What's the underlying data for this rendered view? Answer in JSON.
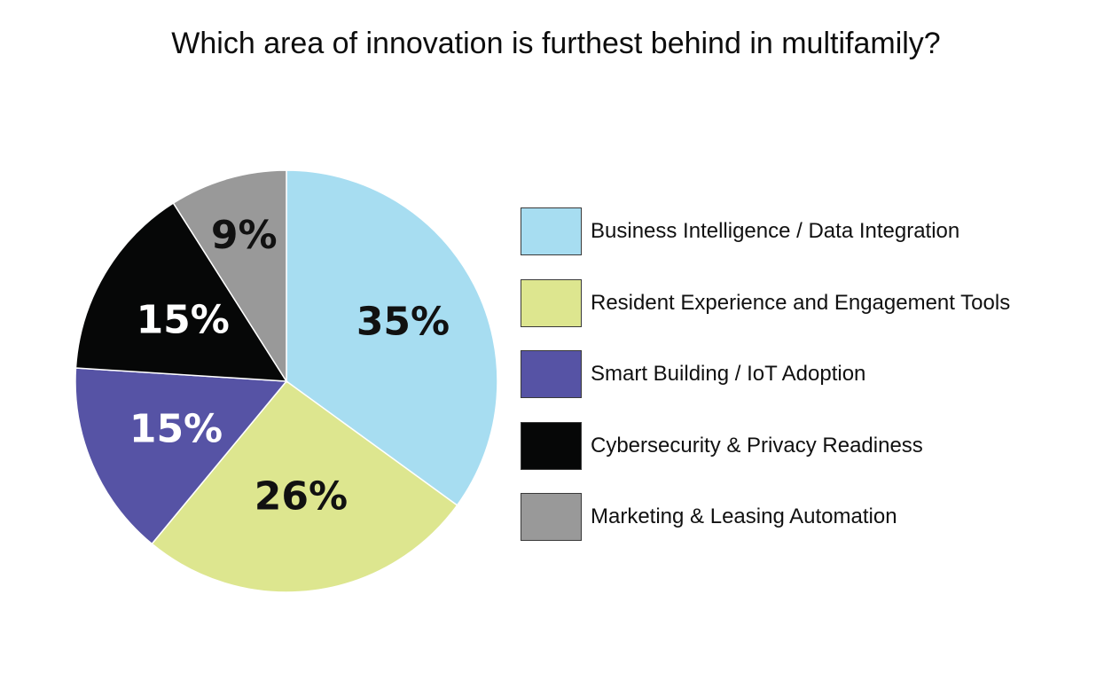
{
  "chart_data": {
    "type": "pie",
    "title": "Which area of innovation is furthest behind in multifamily?",
    "categories": [
      "Business Intelligence / Data Integration",
      "Resident Experience and Engagement Tools",
      "Smart Building / IoT Adoption",
      "Cybersecurity & Privacy Readiness",
      "Marketing & Leasing Automation"
    ],
    "values": [
      35,
      26,
      15,
      15,
      9
    ],
    "labels": [
      "35%",
      "26%",
      "15%",
      "15%",
      "9%"
    ],
    "colors": [
      "#a7ddf1",
      "#dde68f",
      "#5653a5",
      "#060707",
      "#999999"
    ],
    "label_colors": [
      "#111111",
      "#111111",
      "#ffffff",
      "#ffffff",
      "#111111"
    ],
    "legend_position": "right"
  }
}
